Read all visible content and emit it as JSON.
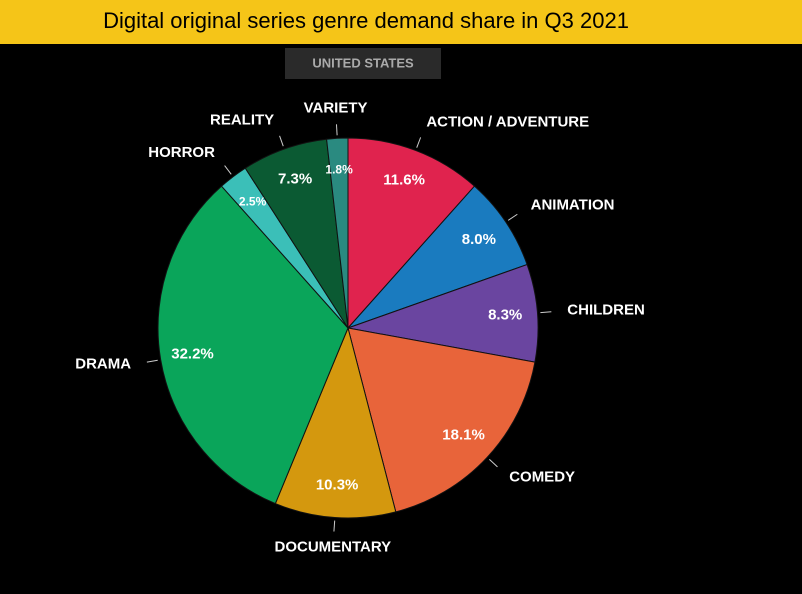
{
  "chart_data": {
    "type": "pie",
    "title": "Digital original series genre demand share in Q3 2021",
    "subtitle": "UNITED STATES",
    "categories": [
      "ACTION / ADVENTURE",
      "ANIMATION",
      "CHILDREN",
      "COMEDY",
      "DOCUMENTARY",
      "DRAMA",
      "HORROR",
      "REALITY",
      "VARIETY"
    ],
    "values": [
      11.6,
      8.0,
      8.3,
      18.1,
      10.3,
      32.2,
      2.5,
      7.3,
      1.8
    ],
    "value_labels": [
      "11.6%",
      "8.0%",
      "8.3%",
      "18.1%",
      "10.3%",
      "32.2%",
      "2.5%",
      "7.3%",
      "1.8%"
    ],
    "colors": [
      "#e0234e",
      "#1a7bbf",
      "#6a45a0",
      "#e8643a",
      "#d4980e",
      "#0aa55a",
      "#3bbfb8",
      "#0b5a33",
      "#2a8a80"
    ]
  }
}
